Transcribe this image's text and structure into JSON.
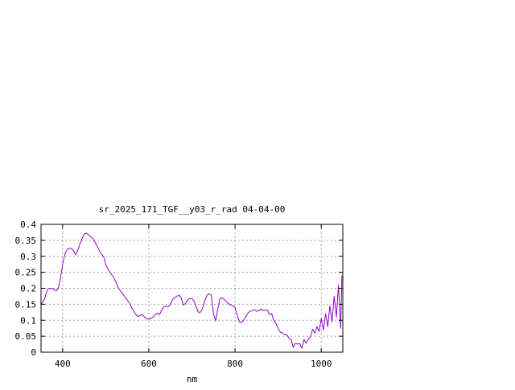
{
  "chart_data": {
    "type": "line",
    "title": "sr_2025_171_TGF__y03_r_rad 04-04-00",
    "xlabel": "nm",
    "ylabel": "",
    "xlim": [
      350,
      1050
    ],
    "ylim": [
      0,
      0.4
    ],
    "grid": true,
    "legend": "none",
    "x_ticks": [
      400,
      600,
      800,
      1000
    ],
    "x_tick_labels": [
      "400",
      "600",
      "800",
      "1000"
    ],
    "y_ticks": [
      0,
      0.05,
      0.1,
      0.15,
      0.2,
      0.25,
      0.3,
      0.35,
      0.4
    ],
    "y_tick_labels": [
      "0",
      "0.05",
      "0.1",
      "0.15",
      "0.2",
      "0.25",
      "0.3",
      "0.35",
      "0.4"
    ],
    "series": [
      {
        "color": "#9400d3",
        "x": [
          350,
          358,
          362,
          366,
          370,
          376,
          380,
          385,
          390,
          395,
          400,
          405,
          410,
          415,
          420,
          425,
          430,
          435,
          440,
          445,
          450,
          455,
          460,
          465,
          470,
          475,
          480,
          485,
          490,
          495,
          500,
          505,
          510,
          515,
          520,
          525,
          530,
          535,
          540,
          545,
          550,
          555,
          560,
          565,
          570,
          575,
          580,
          585,
          590,
          595,
          600,
          605,
          610,
          615,
          620,
          625,
          630,
          635,
          640,
          645,
          650,
          655,
          660,
          665,
          670,
          675,
          680,
          685,
          690,
          695,
          700,
          705,
          710,
          715,
          720,
          725,
          730,
          735,
          740,
          745,
          750,
          755,
          760,
          765,
          770,
          775,
          780,
          785,
          790,
          795,
          800,
          805,
          810,
          815,
          820,
          825,
          830,
          835,
          840,
          845,
          850,
          855,
          860,
          865,
          870,
          875,
          880,
          885,
          890,
          895,
          900,
          905,
          910,
          915,
          920,
          925,
          930,
          935,
          940,
          945,
          950,
          955,
          960,
          965,
          970,
          975,
          980,
          985,
          990,
          995,
          1000,
          1005,
          1010,
          1015,
          1020,
          1025,
          1030,
          1035,
          1040,
          1045,
          1048
        ],
        "y": [
          0.15,
          0.165,
          0.185,
          0.198,
          0.2,
          0.2,
          0.196,
          0.192,
          0.2,
          0.23,
          0.275,
          0.305,
          0.32,
          0.325,
          0.325,
          0.318,
          0.305,
          0.318,
          0.338,
          0.355,
          0.37,
          0.372,
          0.368,
          0.362,
          0.356,
          0.345,
          0.333,
          0.318,
          0.307,
          0.3,
          0.275,
          0.26,
          0.25,
          0.24,
          0.23,
          0.215,
          0.2,
          0.19,
          0.182,
          0.172,
          0.163,
          0.155,
          0.14,
          0.128,
          0.118,
          0.112,
          0.115,
          0.118,
          0.11,
          0.105,
          0.103,
          0.106,
          0.11,
          0.118,
          0.122,
          0.118,
          0.132,
          0.142,
          0.145,
          0.142,
          0.15,
          0.165,
          0.17,
          0.175,
          0.178,
          0.17,
          0.148,
          0.152,
          0.163,
          0.168,
          0.168,
          0.16,
          0.142,
          0.125,
          0.125,
          0.138,
          0.162,
          0.178,
          0.183,
          0.178,
          0.12,
          0.098,
          0.135,
          0.168,
          0.17,
          0.165,
          0.158,
          0.152,
          0.148,
          0.145,
          0.14,
          0.115,
          0.095,
          0.093,
          0.1,
          0.112,
          0.122,
          0.128,
          0.13,
          0.133,
          0.128,
          0.13,
          0.135,
          0.13,
          0.132,
          0.132,
          0.118,
          0.12,
          0.1,
          0.09,
          0.075,
          0.063,
          0.06,
          0.055,
          0.055,
          0.045,
          0.04,
          0.015,
          0.028,
          0.025,
          0.028,
          0.012,
          0.04,
          0.028,
          0.04,
          0.048,
          0.072,
          0.06,
          0.08,
          0.065,
          0.105,
          0.07,
          0.12,
          0.08,
          0.145,
          0.095,
          0.175,
          0.11,
          0.21,
          0.075,
          0.24
        ]
      }
    ]
  }
}
